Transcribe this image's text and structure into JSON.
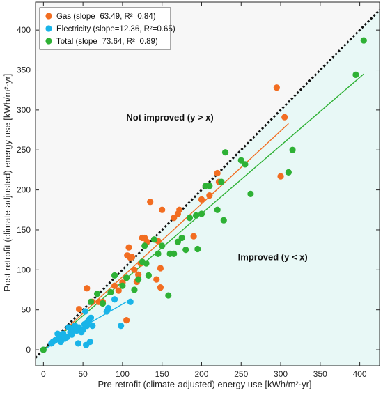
{
  "chart_data": {
    "type": "scatter",
    "xlabel": "Pre-retrofit (climate-adjusted) energy use [kWh/m²·yr]",
    "ylabel": "Post-retrofit (climate-adjusted) energy use [kWh/m²·yr]",
    "xlim": [
      -10,
      425
    ],
    "ylim": [
      -20,
      435
    ],
    "xticks": [
      0,
      50,
      100,
      150,
      200,
      250,
      300,
      350,
      400
    ],
    "yticks": [
      0,
      50,
      100,
      150,
      200,
      250,
      300,
      350,
      400
    ],
    "grid": false,
    "legend_position": "top-left",
    "background_colors": {
      "improved_region": "#e8f8f6",
      "not_improved_region": "#f7f7f7",
      "identity_line": "#111111"
    },
    "annotations": [
      {
        "text": "Not improved (y > x)",
        "x": 160,
        "y": 287
      },
      {
        "text": "Improved (y < x)",
        "x": 290,
        "y": 112
      }
    ],
    "series": [
      {
        "name": "Gas",
        "legend_label": "Gas  (slope=63.49,  R²=0.84)",
        "color": "#f26d21",
        "fit": {
          "x": [
            0,
            310
          ],
          "y": [
            0,
            283
          ]
        },
        "points": [
          [
            45,
            51
          ],
          [
            55,
            77
          ],
          [
            62,
            60
          ],
          [
            70,
            60
          ],
          [
            75,
            60
          ],
          [
            90,
            80
          ],
          [
            95,
            74
          ],
          [
            100,
            84
          ],
          [
            105,
            37
          ],
          [
            106,
            118
          ],
          [
            108,
            128
          ],
          [
            110,
            115
          ],
          [
            112,
            116
          ],
          [
            115,
            100
          ],
          [
            118,
            85
          ],
          [
            120,
            94
          ],
          [
            123,
            108
          ],
          [
            125,
            140
          ],
          [
            128,
            140
          ],
          [
            131,
            135
          ],
          [
            135,
            185
          ],
          [
            143,
            88
          ],
          [
            145,
            136
          ],
          [
            148,
            78
          ],
          [
            148,
            102
          ],
          [
            150,
            175
          ],
          [
            165,
            165
          ],
          [
            170,
            170
          ],
          [
            172,
            175
          ],
          [
            190,
            142
          ],
          [
            200,
            188
          ],
          [
            210,
            193
          ],
          [
            220,
            221
          ],
          [
            222,
            210
          ],
          [
            295,
            328
          ],
          [
            300,
            217
          ],
          [
            305,
            291
          ]
        ]
      },
      {
        "name": "Electricity",
        "legend_label": "Electricity  (slope=12.36,  R²=0.65)",
        "color": "#19b4e8",
        "fit": {
          "x": [
            0,
            105
          ],
          "y": [
            0,
            60
          ]
        },
        "points": [
          [
            0,
            0
          ],
          [
            10,
            8
          ],
          [
            12,
            10
          ],
          [
            15,
            12
          ],
          [
            18,
            20
          ],
          [
            20,
            15
          ],
          [
            22,
            10
          ],
          [
            25,
            20
          ],
          [
            27,
            14
          ],
          [
            30,
            16
          ],
          [
            32,
            28
          ],
          [
            34,
            22
          ],
          [
            36,
            19
          ],
          [
            38,
            25
          ],
          [
            40,
            30
          ],
          [
            42,
            24
          ],
          [
            44,
            8
          ],
          [
            45,
            28
          ],
          [
            48,
            22
          ],
          [
            50,
            25
          ],
          [
            52,
            32
          ],
          [
            53,
            48
          ],
          [
            54,
            6
          ],
          [
            55,
            30
          ],
          [
            56,
            35
          ],
          [
            58,
            38
          ],
          [
            59,
            10
          ],
          [
            60,
            40
          ],
          [
            62,
            30
          ],
          [
            80,
            48
          ],
          [
            82,
            52
          ],
          [
            90,
            63
          ],
          [
            98,
            30
          ],
          [
            110,
            60
          ]
        ]
      },
      {
        "name": "Total",
        "legend_label": "Total  (slope=73.64,  R²=0.89)",
        "color": "#2eb135",
        "fit": {
          "x": [
            0,
            405
          ],
          "y": [
            0,
            345
          ]
        },
        "points": [
          [
            0,
            0
          ],
          [
            60,
            60
          ],
          [
            68,
            70
          ],
          [
            75,
            58
          ],
          [
            85,
            72
          ],
          [
            90,
            93
          ],
          [
            100,
            80
          ],
          [
            105,
            90
          ],
          [
            115,
            75
          ],
          [
            120,
            88
          ],
          [
            125,
            110
          ],
          [
            128,
            130
          ],
          [
            130,
            108
          ],
          [
            133,
            93
          ],
          [
            140,
            138
          ],
          [
            145,
            120
          ],
          [
            150,
            130
          ],
          [
            158,
            68
          ],
          [
            160,
            120
          ],
          [
            165,
            120
          ],
          [
            170,
            135
          ],
          [
            175,
            140
          ],
          [
            180,
            125
          ],
          [
            185,
            165
          ],
          [
            193,
            168
          ],
          [
            195,
            126
          ],
          [
            200,
            170
          ],
          [
            205,
            205
          ],
          [
            210,
            205
          ],
          [
            220,
            175
          ],
          [
            225,
            210
          ],
          [
            228,
            162
          ],
          [
            230,
            247
          ],
          [
            250,
            237
          ],
          [
            255,
            232
          ],
          [
            262,
            195
          ],
          [
            310,
            222
          ],
          [
            315,
            250
          ],
          [
            395,
            344
          ],
          [
            405,
            387
          ]
        ]
      }
    ]
  }
}
